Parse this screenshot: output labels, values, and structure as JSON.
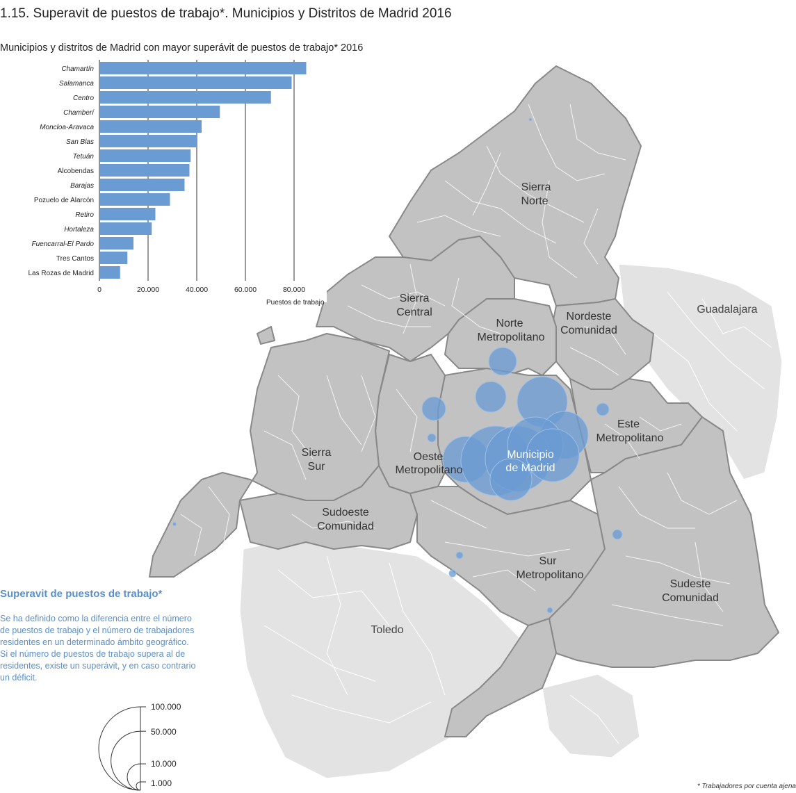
{
  "title": "1.15. Superavit de puestos de trabajo*. Municipios y Distritos de Madrid 2016",
  "chart_title": "Municipios y distritos de Madrid con mayor superávit de puestos de trabajo* 2016",
  "colors": {
    "accent": "#5b8fc9",
    "bar": "#6a9bd2",
    "region": "#c2c2c2",
    "outside": "#e3e3e3",
    "bubble": "#6a9bd2"
  },
  "chart_data": {
    "type": "bar",
    "orientation": "horizontal",
    "title": "Municipios y distritos de Madrid con mayor superávit de puestos de trabajo* 2016",
    "xlabel": "Puestos de trabajo",
    "ylabel": "",
    "xlim": [
      0,
      85000
    ],
    "x_ticks": [
      0,
      20000,
      40000,
      60000,
      80000
    ],
    "x_tick_labels": [
      "0",
      "20.000",
      "40.000",
      "60.000",
      "80.000"
    ],
    "grid": true,
    "categories": [
      "Chamartín",
      "Salamanca",
      "Centro",
      "Chamberí",
      "Moncloa-Aravaca",
      "San Blas",
      "Tetuán",
      "Alcobendas",
      "Barajas",
      "Pozuelo de Alarcón",
      "Retiro",
      "Hortaleza",
      "Fuencarral-El Pardo",
      "Tres Cantos",
      "Las Rozas de Madrid"
    ],
    "italic": [
      true,
      true,
      true,
      true,
      true,
      true,
      true,
      false,
      true,
      false,
      true,
      true,
      true,
      false,
      false
    ],
    "values": [
      85000,
      79000,
      70500,
      49500,
      42000,
      40000,
      37500,
      37000,
      35000,
      29000,
      23000,
      21500,
      14000,
      11500,
      8500
    ]
  },
  "map": {
    "regions": [
      "Sierra Norte",
      "Sierra Central",
      "Nordeste Comunidad",
      "Norte Metropolitano",
      "Este Metropolitano",
      "Municipio de Madrid",
      "Oeste Metropolitano",
      "Sierra Sur",
      "Sudoeste Comunidad",
      "Sur Metropolitano",
      "Sudeste Comunidad"
    ],
    "outside": [
      "Guadalajara",
      "Toledo"
    ],
    "labels": {
      "sierra_norte": [
        "Sierra",
        "Norte"
      ],
      "sierra_central": [
        "Sierra",
        "Central"
      ],
      "nordeste": [
        "Nordeste",
        "Comunidad"
      ],
      "norte_metro": [
        "Norte",
        "Metropolitano"
      ],
      "este_metro": [
        "Este",
        "Metropolitano"
      ],
      "madrid": [
        "Municipio",
        "de Madrid"
      ],
      "oeste_metro": [
        "Oeste",
        "Metropolitano"
      ],
      "sierra_sur": [
        "Sierra",
        "Sur"
      ],
      "sudoeste": [
        "Sudoeste",
        "Comunidad"
      ],
      "sur_metro": [
        "Sur",
        "Metropolitano"
      ],
      "sudeste": [
        "Sudeste",
        "Comunidad"
      ],
      "guadalajara": "Guadalajara",
      "toledo": "Toledo"
    }
  },
  "note": {
    "title": "Superavit de puestos de trabajo*",
    "text": "Se ha definido como la diferencia entre el número de puestos de trabajo y el número de trabajadores residentes  en un determinado ámbito geográfico. Si el número de puestos de trabajo supera al de residentes, existe un superávit, y en caso contrario un déficit."
  },
  "legend": {
    "values": [
      100000,
      50000,
      10000,
      1000
    ],
    "labels": [
      "100.000",
      "50.000",
      "10.000",
      "1.000"
    ]
  },
  "footnote": "* Trabajadores por cuenta ajena"
}
